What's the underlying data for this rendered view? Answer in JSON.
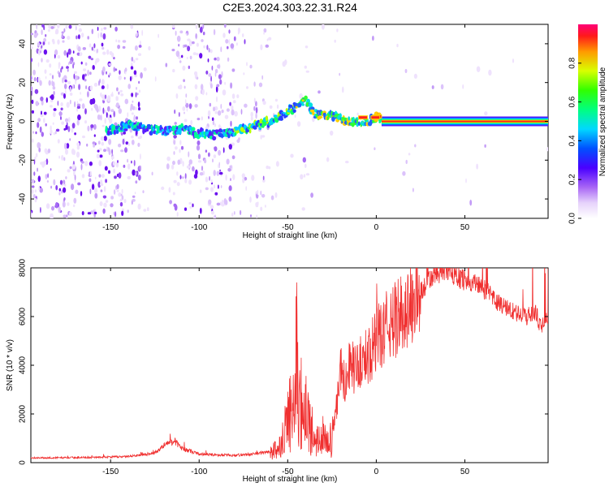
{
  "chart_data": [
    {
      "type": "heatmap",
      "title": "C2E3.2024.303.22.31.R24",
      "xlabel": "Height of straight line (km)",
      "ylabel": "Frequency (Hz)",
      "xlim": [
        -195,
        97
      ],
      "ylim": [
        -50,
        50
      ],
      "xticks": [
        -150,
        -100,
        -50,
        0,
        50
      ],
      "yticks": [
        -40,
        -20,
        0,
        20,
        40
      ],
      "colorbar": {
        "label": "Normalized spectral amplitude",
        "range": [
          0,
          1
        ],
        "ticks": [
          "0.0",
          "0.2",
          "0.4",
          "0.6",
          "0.8"
        ]
      },
      "ridge": {
        "x": [
          -150,
          -140,
          -130,
          -120,
          -110,
          -100,
          -95,
          -90,
          -85,
          -80,
          -70,
          -60,
          -50,
          -45,
          -40,
          -35,
          -30,
          -25,
          -20,
          -15,
          -10,
          -5,
          0,
          5,
          10,
          20,
          40,
          60,
          80,
          96
        ],
        "y": [
          -5,
          -2,
          -4,
          -5,
          -4,
          -6,
          -7,
          -7,
          -6,
          -5,
          -3,
          0,
          5,
          8,
          11,
          4,
          3,
          3,
          1,
          0,
          0,
          0,
          2,
          0,
          0,
          0,
          0,
          0,
          0,
          0
        ]
      }
    },
    {
      "type": "line",
      "xlabel": "Height of straight line (km)",
      "ylabel": "SNR (10 * v/v)",
      "xlim": [
        -195,
        97
      ],
      "ylim": [
        0,
        8000
      ],
      "xticks": [
        -150,
        -100,
        -50,
        0,
        50
      ],
      "yticks": [
        0,
        2000,
        4000,
        6000,
        8000
      ],
      "color": "#f03030",
      "envelope": {
        "x": [
          -195,
          -180,
          -160,
          -140,
          -125,
          -118,
          -114,
          -110,
          -100,
          -90,
          -80,
          -70,
          -60,
          -55,
          -52,
          -48,
          -45,
          -43,
          -40,
          -36,
          -33,
          -30,
          -27,
          -25,
          -22,
          -20,
          -17,
          -15,
          -12,
          -10,
          -7,
          -5,
          -2,
          0,
          5,
          10,
          15,
          20,
          25,
          30,
          35,
          40,
          45,
          50,
          55,
          60,
          65,
          70,
          75,
          80,
          85,
          90,
          93,
          96
        ],
        "y": [
          200,
          200,
          220,
          250,
          400,
          800,
          900,
          600,
          350,
          320,
          300,
          350,
          450,
          700,
          1500,
          2500,
          5200,
          3200,
          2500,
          1500,
          1000,
          1300,
          800,
          1400,
          2600,
          4000,
          3000,
          4200,
          3800,
          4000,
          4300,
          4400,
          4700,
          5000,
          5500,
          5800,
          6200,
          6500,
          7000,
          7500,
          7800,
          7900,
          7700,
          7500,
          7400,
          7200,
          6800,
          6500,
          6300,
          6100,
          6000,
          6200,
          5500,
          6000
        ]
      }
    }
  ]
}
